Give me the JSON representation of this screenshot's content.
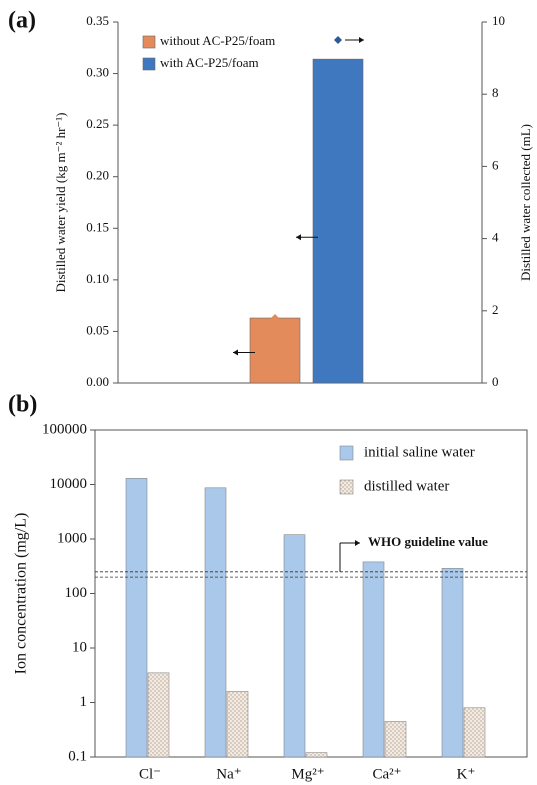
{
  "charts": [
    {
      "chart_data": {
        "type": "bar",
        "panel_label": "(a)",
        "y_label": "Distilled water yield (kg m⁻² hr⁻¹)",
        "y2_label": "Distilled water collected (mL)",
        "series": [
          {
            "name": "without AC-P25/foam",
            "color": "#e38b5a",
            "values": [
              0.063
            ],
            "y2_values": [
              1.8
            ],
            "y2_color": "#e38b5a"
          },
          {
            "name": "with AC-P25/foam",
            "color": "#3f78bf",
            "values": [
              0.314
            ],
            "y2_values": [
              9.5
            ],
            "y2_color": "#2f5a9a"
          }
        ],
        "ylim": [
          0,
          0.35
        ],
        "yticks": [
          {
            "value": 0,
            "label": "0.00"
          },
          {
            "value": 0.05,
            "label": "0.05"
          },
          {
            "value": 0.1,
            "label": "0.10"
          },
          {
            "value": 0.15,
            "label": "0.15"
          },
          {
            "value": 0.2,
            "label": "0.20"
          },
          {
            "value": 0.25,
            "label": "0.25"
          },
          {
            "value": 0.3,
            "label": "0.30"
          },
          {
            "value": 0.35,
            "label": "0.35"
          }
        ],
        "y2lim": [
          0,
          10
        ],
        "y2ticks": [
          0,
          2,
          4,
          6,
          8,
          10
        ]
      }
    },
    {
      "chart_data": {
        "type": "bar",
        "panel_label": "(b)",
        "log_scale": true,
        "y_label": "Ion concentration (mg/L)",
        "categories": [
          "Cl⁻",
          "Na⁺",
          "Mg²⁺",
          "Ca²⁺",
          "K⁺"
        ],
        "series": [
          {
            "name": "initial saline water",
            "color": "#a9c8ea",
            "values": [
              13000,
              8700,
              1200,
              380,
              290
            ]
          },
          {
            "name": "distilled water",
            "color": "#ece2d8",
            "values": [
              3.5,
              1.6,
              0.12,
              0.45,
              0.8
            ]
          }
        ],
        "ylim": [
          0.1,
          100000
        ],
        "yticks": [
          0.1,
          1,
          10,
          100,
          1000,
          10000,
          100000
        ],
        "annotation": "WHO guideline value",
        "guideline_values": [
          200,
          250
        ]
      }
    }
  ]
}
